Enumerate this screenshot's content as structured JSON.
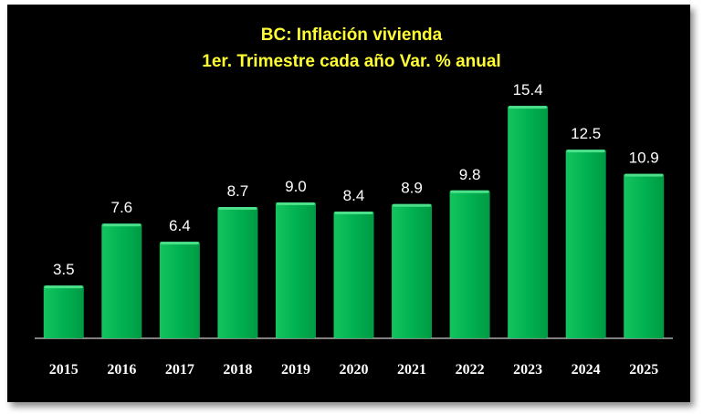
{
  "chart_data": {
    "type": "bar",
    "title": "BC: Inflación vivienda",
    "subtitle": "1er. Trimestre cada año Var. % anual",
    "categories": [
      "2015",
      "2016",
      "2017",
      "2018",
      "2019",
      "2020",
      "2021",
      "2022",
      "2023",
      "2024",
      "2025"
    ],
    "values": [
      3.5,
      7.6,
      6.4,
      8.7,
      9.0,
      8.4,
      8.9,
      9.8,
      15.4,
      12.5,
      10.9
    ],
    "value_labels": [
      "3.5",
      "7.6",
      "6.4",
      "8.7",
      "9.0",
      "8.4",
      "8.9",
      "9.8",
      "15.4",
      "12.5",
      "10.9"
    ],
    "xlabel": "",
    "ylabel": "",
    "ylim": [
      0,
      17
    ],
    "grid": false,
    "legend": "none",
    "colors": {
      "bar": "#00b050",
      "bar_top": "#4de08a",
      "background": "#000000",
      "title": "#ffff33",
      "text": "#ffffff"
    }
  }
}
